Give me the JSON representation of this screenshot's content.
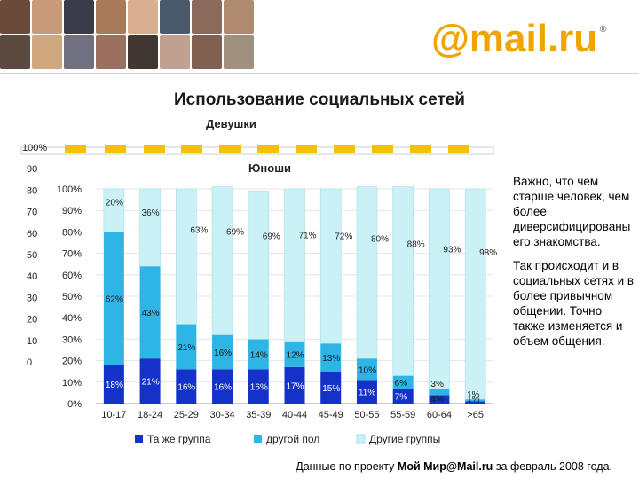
{
  "header": {
    "logo_text": "@mail.ru",
    "logo_mark": "®"
  },
  "title": "Использование социальных сетей",
  "colors": {
    "same_group": "#1432c8",
    "other_gender": "#2fb4e6",
    "other_groups": "#c9f1f6",
    "brand_orange": "#f0a400",
    "girls_bar": "#f2c200"
  },
  "chart_data": [
    {
      "type": "bar",
      "stacked": true,
      "title": "Юноши",
      "categories": [
        "10-17",
        "18-24",
        "25-29",
        "30-34",
        "35-39",
        "40-44",
        "45-49",
        "50-55",
        "55-59",
        "60-64",
        ">65"
      ],
      "series": [
        {
          "name": "Та же группа",
          "values": [
            18,
            21,
            16,
            16,
            16,
            17,
            15,
            11,
            7,
            4,
            1
          ],
          "labels": [
            "18%",
            "21%",
            "16%",
            "16%",
            "16%",
            "17%",
            "15%",
            "11%",
            "7%",
            "4%",
            "1%"
          ]
        },
        {
          "name": "другой пол",
          "values": [
            62,
            43,
            21,
            16,
            14,
            12,
            13,
            10,
            6,
            3,
            1
          ],
          "labels": [
            "62%",
            "43%",
            "21%",
            "16%",
            "14%",
            "12%",
            "13%",
            "10%",
            "6%",
            "3%",
            "1%"
          ]
        },
        {
          "name": "Другие группы",
          "values": [
            20,
            36,
            63,
            69,
            69,
            71,
            72,
            80,
            88,
            93,
            98
          ],
          "labels": [
            "20%",
            "36%",
            "63%",
            "69%",
            "69%",
            "71%",
            "72%",
            "80%",
            "88%",
            "93%",
            "98%"
          ]
        }
      ],
      "yticks": [
        "0%",
        "10%",
        "20%",
        "30%",
        "40%",
        "50%",
        "60%",
        "70%",
        "80%",
        "90%",
        "100%"
      ],
      "ylim": [
        0,
        100
      ],
      "legend_position": "bottom"
    },
    {
      "type": "bar",
      "stacked": true,
      "title": "Девушки",
      "partially_hidden": true,
      "yticks_visible": [
        "100%",
        "90",
        "80",
        "70",
        "60",
        "50",
        "40",
        "30",
        "20",
        "10",
        "0"
      ]
    }
  ],
  "side_text": {
    "para1": "Важно, что чем старше человек, чем более диверсифицированы его знакомства.",
    "para2": "Так происходит и в социальных сетях и в более привычном общении. Точно также изменяется и объем общения."
  },
  "footer": {
    "prefix": "Данные по проекту",
    "bold": "Мой Мир@Mail.ru",
    "suffix": "за февраль 2008 года."
  }
}
